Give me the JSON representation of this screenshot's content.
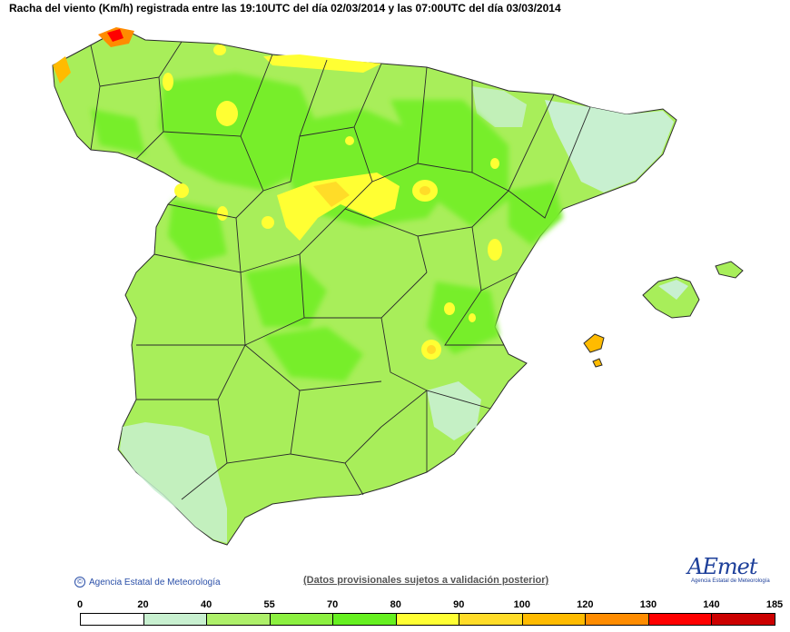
{
  "title": "Racha del viento (Km/h) registrada entre las 19:10UTC del día 02/03/2014 y las 07:00UTC del día 03/03/2014",
  "credit": "Agencia Estatal de Meteorología",
  "disclaimer": "(Datos provisionales sujetos a validación posterior)",
  "logo": {
    "text": "AEmet",
    "subtitle": "Agencia Estatal de Meteorología"
  },
  "legend": {
    "ticks": [
      "0",
      "20",
      "40",
      "55",
      "70",
      "80",
      "90",
      "100",
      "120",
      "130",
      "140",
      "185"
    ],
    "colors": [
      "#ffffff",
      "#c8f0d0",
      "#aef06a",
      "#8cf040",
      "#66f020",
      "#ffff33",
      "#ffdc28",
      "#ffbb00",
      "#ff8c00",
      "#ff0000",
      "#cc0000",
      "#a01010"
    ]
  }
}
